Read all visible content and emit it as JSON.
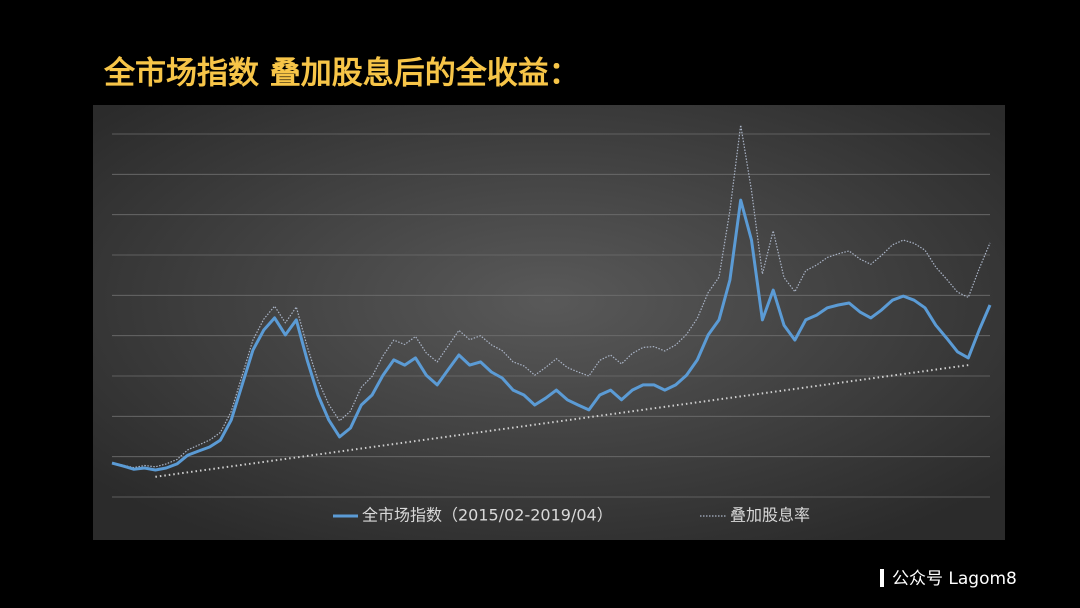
{
  "title": "全市场指数 叠加股息后的全收益：",
  "footer": "公众号 Lagom8",
  "chart_data": {
    "type": "line",
    "ylim": [
      0,
      9
    ],
    "yticks": [
      0,
      1,
      2,
      3,
      4,
      5,
      6,
      7,
      8,
      9
    ],
    "grid": true,
    "legend": "bottom",
    "series": [
      {
        "name": "全市场指数（2015/02-2019/04）",
        "color": "#5b9bd5",
        "values": [
          0.84,
          0.77,
          0.69,
          0.72,
          0.67,
          0.72,
          0.82,
          1.04,
          1.14,
          1.24,
          1.41,
          1.91,
          2.78,
          3.64,
          4.14,
          4.44,
          4.02,
          4.39,
          3.4,
          2.53,
          1.91,
          1.49,
          1.71,
          2.28,
          2.53,
          3.02,
          3.4,
          3.27,
          3.45,
          3.02,
          2.78,
          3.15,
          3.52,
          3.27,
          3.35,
          3.1,
          2.95,
          2.65,
          2.53,
          2.28,
          2.45,
          2.65,
          2.41,
          2.28,
          2.16,
          2.53,
          2.65,
          2.41,
          2.65,
          2.78,
          2.78,
          2.65,
          2.78,
          3.02,
          3.4,
          4.02,
          4.39,
          5.38,
          7.36,
          6.37,
          4.39,
          5.13,
          4.26,
          3.89,
          4.39,
          4.51,
          4.69,
          4.76,
          4.81,
          4.59,
          4.44,
          4.64,
          4.88,
          4.98,
          4.88,
          4.69,
          4.26,
          3.94,
          3.6,
          3.45,
          4.14,
          4.76
        ]
      },
      {
        "name": "叠加股息率",
        "color": "#aab4c6",
        "values": [
          0.84,
          0.79,
          0.73,
          0.78,
          0.75,
          0.82,
          0.93,
          1.17,
          1.29,
          1.41,
          1.6,
          2.12,
          3.01,
          3.89,
          4.41,
          4.73,
          4.32,
          4.71,
          3.74,
          2.89,
          2.29,
          1.89,
          2.13,
          2.72,
          2.99,
          3.5,
          3.89,
          3.78,
          3.98,
          3.57,
          3.35,
          3.74,
          4.13,
          3.9,
          4.0,
          3.77,
          3.63,
          3.35,
          3.25,
          3.02,
          3.21,
          3.43,
          3.21,
          3.1,
          3.0,
          3.39,
          3.52,
          3.3,
          3.56,
          3.71,
          3.73,
          3.62,
          3.77,
          4.03,
          4.43,
          5.07,
          5.45,
          7.1,
          9.22,
          7.6,
          5.53,
          6.6,
          5.44,
          5.09,
          5.61,
          5.75,
          5.94,
          6.03,
          6.1,
          5.9,
          5.77,
          5.99,
          6.25,
          6.37,
          6.29,
          6.12,
          5.7,
          5.4,
          5.08,
          4.95,
          5.66,
          6.3
        ]
      }
    ],
    "trend_line": {
      "color": "#d0d0d0",
      "x": [
        4,
        79
      ],
      "values": [
        0.5,
        3.27
      ]
    }
  }
}
